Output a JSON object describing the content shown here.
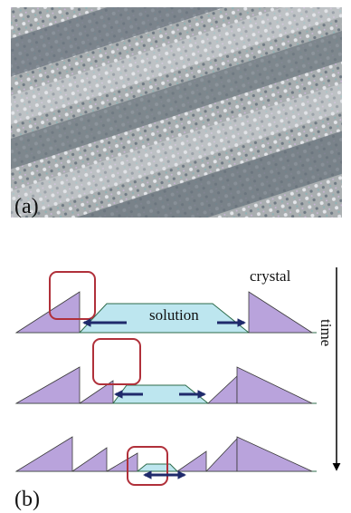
{
  "panel_a": {
    "label": "(a)"
  },
  "panel_b": {
    "label": "(b)",
    "crystal_label": "crystal",
    "solution_label": "solution",
    "time_label": "time"
  }
}
